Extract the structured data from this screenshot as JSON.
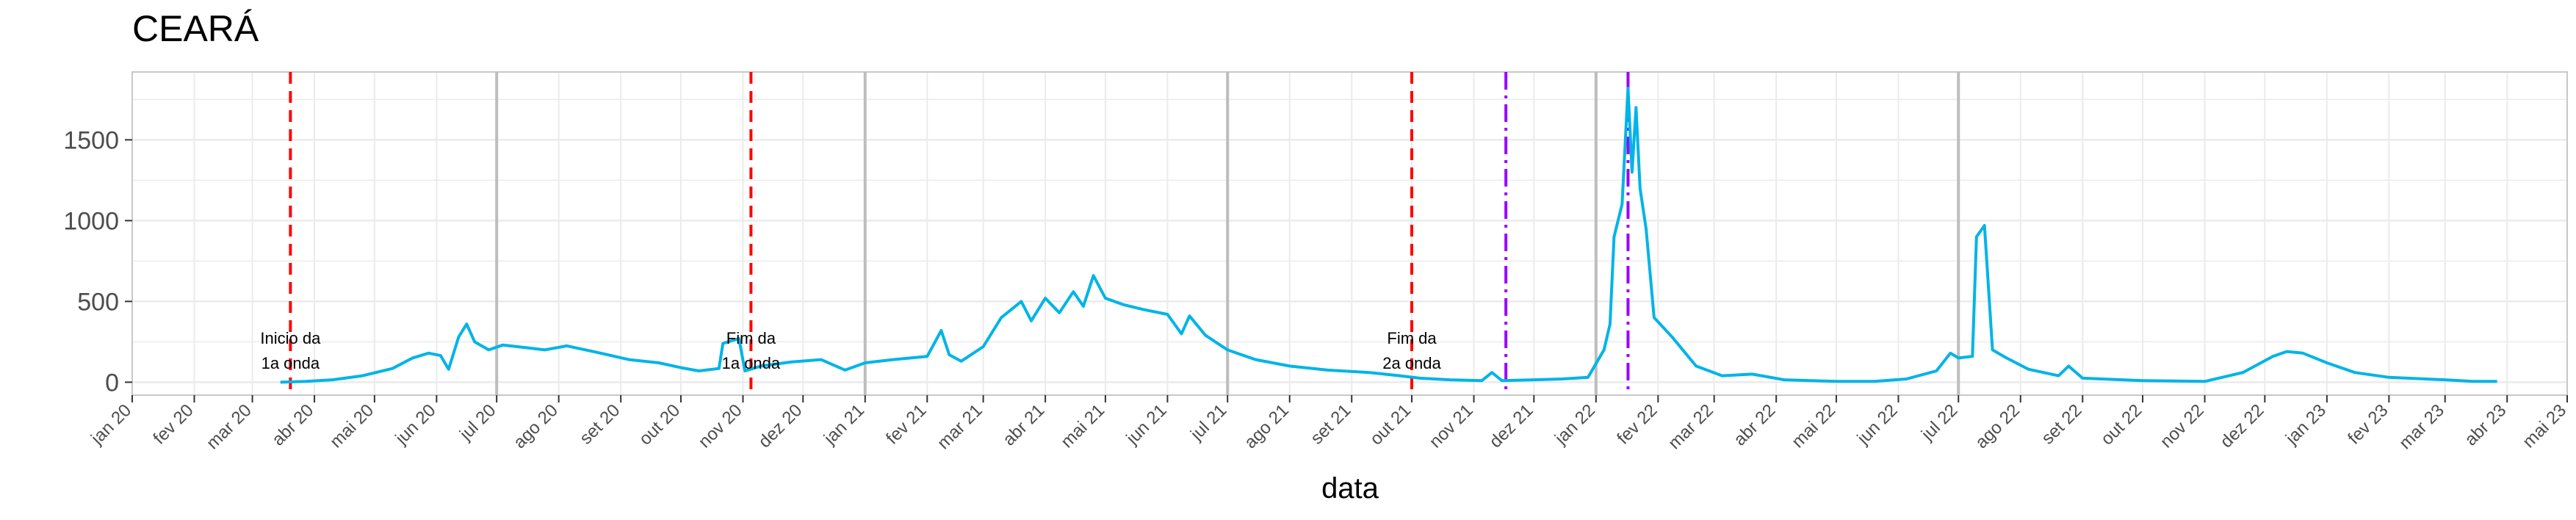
{
  "chart_data": {
    "type": "line",
    "title": "CEARÁ",
    "xlabel": "data",
    "ylabel": "",
    "ylim": [
      -80,
      1920
    ],
    "yticks": [
      0,
      500,
      1000,
      1500
    ],
    "xlim": [
      "2020-01-01",
      "2023-05-01"
    ],
    "xtick_labels": [
      "jan 20",
      "fev 20",
      "mar 20",
      "abr 20",
      "mai 20",
      "jun 20",
      "jul 20",
      "ago 20",
      "set 20",
      "out 20",
      "nov 20",
      "dez 20",
      "jan 21",
      "fev 21",
      "mar 21",
      "abr 21",
      "mai 21",
      "jun 21",
      "jul 21",
      "ago 21",
      "set 21",
      "out 21",
      "nov 21",
      "dez 21",
      "jan 22",
      "fev 22",
      "mar 22",
      "abr 22",
      "mai 22",
      "jun 22",
      "jul 22",
      "ago 22",
      "set 22",
      "out 22",
      "nov 22",
      "dez 22",
      "jan 23",
      "fev 23",
      "mar 23",
      "abr 23",
      "mai 23"
    ],
    "grid": true,
    "colors": {
      "series": "#00B4E6",
      "wave_line": "#FF0000",
      "variant_line": "#9B00FF",
      "semester_line": "#BDBDBD",
      "grid": "#EBEBEB",
      "panel_border": "#C8C8C8"
    },
    "series": [
      {
        "values": [
          [
            "2020-03-15",
            0
          ],
          [
            "2020-03-28",
            5
          ],
          [
            "2020-04-10",
            15
          ],
          [
            "2020-04-25",
            40
          ],
          [
            "2020-05-10",
            85
          ],
          [
            "2020-05-20",
            150
          ],
          [
            "2020-05-28",
            180
          ],
          [
            "2020-06-03",
            165
          ],
          [
            "2020-06-07",
            80
          ],
          [
            "2020-06-12",
            280
          ],
          [
            "2020-06-16",
            360
          ],
          [
            "2020-06-20",
            250
          ],
          [
            "2020-06-27",
            200
          ],
          [
            "2020-07-04",
            230
          ],
          [
            "2020-07-15",
            215
          ],
          [
            "2020-07-25",
            200
          ],
          [
            "2020-08-05",
            225
          ],
          [
            "2020-08-20",
            185
          ],
          [
            "2020-09-05",
            140
          ],
          [
            "2020-09-20",
            120
          ],
          [
            "2020-10-01",
            90
          ],
          [
            "2020-10-10",
            70
          ],
          [
            "2020-10-20",
            85
          ],
          [
            "2020-10-22",
            240
          ],
          [
            "2020-10-30",
            270
          ],
          [
            "2020-11-02",
            70
          ],
          [
            "2020-11-10",
            100
          ],
          [
            "2020-11-25",
            125
          ],
          [
            "2020-12-10",
            140
          ],
          [
            "2020-12-22",
            75
          ],
          [
            "2021-01-01",
            120
          ],
          [
            "2021-01-15",
            140
          ],
          [
            "2021-02-01",
            160
          ],
          [
            "2021-02-08",
            320
          ],
          [
            "2021-02-12",
            170
          ],
          [
            "2021-02-18",
            130
          ],
          [
            "2021-03-01",
            220
          ],
          [
            "2021-03-10",
            400
          ],
          [
            "2021-03-20",
            500
          ],
          [
            "2021-03-25",
            380
          ],
          [
            "2021-04-01",
            520
          ],
          [
            "2021-04-08",
            430
          ],
          [
            "2021-04-15",
            560
          ],
          [
            "2021-04-20",
            470
          ],
          [
            "2021-04-25",
            660
          ],
          [
            "2021-05-01",
            520
          ],
          [
            "2021-05-10",
            480
          ],
          [
            "2021-05-20",
            450
          ],
          [
            "2021-06-01",
            420
          ],
          [
            "2021-06-08",
            300
          ],
          [
            "2021-06-12",
            410
          ],
          [
            "2021-06-20",
            290
          ],
          [
            "2021-07-01",
            200
          ],
          [
            "2021-07-15",
            140
          ],
          [
            "2021-08-01",
            100
          ],
          [
            "2021-08-20",
            75
          ],
          [
            "2021-09-10",
            60
          ],
          [
            "2021-09-25",
            40
          ],
          [
            "2021-10-05",
            25
          ],
          [
            "2021-10-20",
            15
          ],
          [
            "2021-11-05",
            10
          ],
          [
            "2021-11-10",
            60
          ],
          [
            "2021-11-15",
            10
          ],
          [
            "2021-12-01",
            15
          ],
          [
            "2021-12-15",
            20
          ],
          [
            "2021-12-28",
            30
          ],
          [
            "2022-01-05",
            200
          ],
          [
            "2022-01-08",
            360
          ],
          [
            "2022-01-10",
            900
          ],
          [
            "2022-01-14",
            1100
          ],
          [
            "2022-01-17",
            1820
          ],
          [
            "2022-01-19",
            1300
          ],
          [
            "2022-01-21",
            1700
          ],
          [
            "2022-01-23",
            1200
          ],
          [
            "2022-01-26",
            950
          ],
          [
            "2022-01-30",
            400
          ],
          [
            "2022-02-08",
            280
          ],
          [
            "2022-02-20",
            100
          ],
          [
            "2022-03-05",
            40
          ],
          [
            "2022-03-20",
            50
          ],
          [
            "2022-04-05",
            15
          ],
          [
            "2022-05-01",
            5
          ],
          [
            "2022-05-20",
            5
          ],
          [
            "2022-06-05",
            20
          ],
          [
            "2022-06-20",
            70
          ],
          [
            "2022-06-27",
            180
          ],
          [
            "2022-07-01",
            150
          ],
          [
            "2022-07-08",
            160
          ],
          [
            "2022-07-10",
            900
          ],
          [
            "2022-07-14",
            970
          ],
          [
            "2022-07-18",
            200
          ],
          [
            "2022-07-25",
            150
          ],
          [
            "2022-08-05",
            80
          ],
          [
            "2022-08-20",
            40
          ],
          [
            "2022-08-25",
            100
          ],
          [
            "2022-09-01",
            25
          ],
          [
            "2022-10-01",
            10
          ],
          [
            "2022-11-01",
            5
          ],
          [
            "2022-11-20",
            60
          ],
          [
            "2022-12-05",
            160
          ],
          [
            "2022-12-12",
            190
          ],
          [
            "2022-12-20",
            180
          ],
          [
            "2023-01-01",
            120
          ],
          [
            "2023-01-15",
            60
          ],
          [
            "2023-02-01",
            30
          ],
          [
            "2023-03-01",
            15
          ],
          [
            "2023-03-15",
            5
          ],
          [
            "2023-03-27",
            5
          ]
        ]
      }
    ],
    "vertical_lines": [
      {
        "date": "2020-03-20",
        "style": "dashed",
        "color": "#FF0000"
      },
      {
        "date": "2020-11-05",
        "style": "dashed",
        "color": "#FF0000"
      },
      {
        "date": "2021-10-01",
        "style": "dashed",
        "color": "#FF0000"
      },
      {
        "date": "2021-11-17",
        "style": "dotdash",
        "color": "#9B00FF"
      },
      {
        "date": "2022-01-17",
        "style": "dotdash",
        "color": "#9B00FF"
      }
    ],
    "semester_lines": [
      "2020-07-01",
      "2021-01-01",
      "2021-07-01",
      "2022-01-01",
      "2022-07-01"
    ],
    "annotations": [
      {
        "date": "2020-03-20",
        "line1": "Inicio da",
        "line2": "1a onda"
      },
      {
        "date": "2020-11-05",
        "line1": "Fim da",
        "line2": "1a onda"
      },
      {
        "date": "2021-10-01",
        "line1": "Fim da",
        "line2": "2a onda"
      }
    ]
  }
}
